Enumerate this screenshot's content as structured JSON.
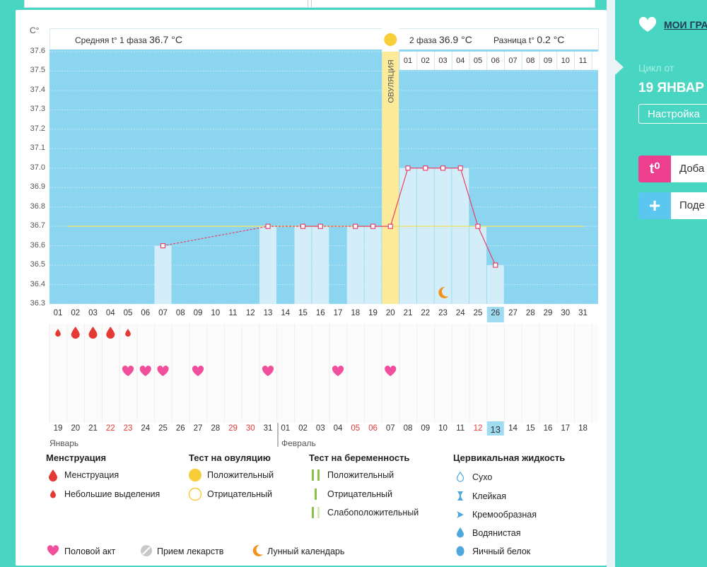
{
  "header": {
    "phase1_label": "Средняя t° 1 фаза",
    "phase1_value": "36.7 °C",
    "phase2_label": "2 фаза",
    "phase2_value": "36.9 °C",
    "diff_label": "Разница t°",
    "diff_value": "0.2 °C",
    "y_unit": "C°",
    "ovulation_label": "ОВУЛЯЦИЯ"
  },
  "chart_data": {
    "type": "line",
    "ylim": [
      36.3,
      37.6
    ],
    "yticks": [
      "36.3",
      "36.4",
      "36.5",
      "36.6",
      "36.7",
      "36.8",
      "36.9",
      "37.0",
      "37.1",
      "37.2",
      "37.3",
      "37.4",
      "37.5",
      "37.6"
    ],
    "cycle_days": [
      "01",
      "02",
      "03",
      "04",
      "05",
      "06",
      "07",
      "08",
      "09",
      "10",
      "11",
      "12",
      "13",
      "14",
      "15",
      "16",
      "17",
      "18",
      "19",
      "20",
      "21",
      "22",
      "23",
      "24",
      "25",
      "26",
      "27",
      "28",
      "29",
      "30",
      "31"
    ],
    "phase2_days": [
      "01",
      "02",
      "03",
      "04",
      "05",
      "06",
      "07",
      "08",
      "09",
      "10",
      "11"
    ],
    "current_day_index": 25,
    "temperatures": [
      {
        "day": 7,
        "value": 36.6
      },
      {
        "day": 13,
        "value": 36.7
      },
      {
        "day": 15,
        "value": 36.7
      },
      {
        "day": 16,
        "value": 36.7
      },
      {
        "day": 18,
        "value": 36.7
      },
      {
        "day": 19,
        "value": 36.7
      },
      {
        "day": 20,
        "value": 36.7
      },
      {
        "day": 21,
        "value": 37.0
      },
      {
        "day": 22,
        "value": 37.0
      },
      {
        "day": 23,
        "value": 37.0
      },
      {
        "day": 24,
        "value": 37.0
      },
      {
        "day": 25,
        "value": 36.7
      },
      {
        "day": 26,
        "value": 36.5
      }
    ],
    "coverline": 36.7,
    "ovulation_day": 20,
    "moon_day": 23,
    "menstruation": [
      {
        "day": 1,
        "type": "light"
      },
      {
        "day": 2,
        "type": "full"
      },
      {
        "day": 3,
        "type": "full"
      },
      {
        "day": 4,
        "type": "full"
      },
      {
        "day": 5,
        "type": "light"
      }
    ],
    "intercourse_days": [
      5,
      6,
      7,
      9,
      13,
      17,
      20
    ],
    "calendar_dates": [
      "19",
      "20",
      "21",
      "22",
      "23",
      "24",
      "25",
      "26",
      "27",
      "28",
      "29",
      "30",
      "31",
      "01",
      "02",
      "03",
      "04",
      "05",
      "06",
      "07",
      "08",
      "09",
      "10",
      "11",
      "12",
      "13",
      "14",
      "15",
      "16",
      "17",
      "18"
    ],
    "calendar_red_indices": [
      3,
      4,
      10,
      11,
      17,
      18,
      24
    ],
    "calendar_current_index": 25,
    "month1": "Январь",
    "month2": "Февраль"
  },
  "legend": {
    "menstruation_title": "Менструация",
    "menstruation_full": "Менструация",
    "menstruation_light": "Небольшие выделения",
    "ovtest_title": "Тест на овуляцию",
    "ovtest_pos": "Положительный",
    "ovtest_neg": "Отрицательный",
    "pregtest_title": "Тест на беременность",
    "pregtest_pos": "Положительный",
    "pregtest_neg": "Отрицательный",
    "pregtest_weak": "Слабоположительный",
    "fluid_title": "Цервикальная жидкость",
    "fluid_dry": "Сухо",
    "fluid_sticky": "Клейкая",
    "fluid_creamy": "Кремообразная",
    "fluid_watery": "Водянистая",
    "fluid_eggwhite": "Яичный белок",
    "sex": "Половой акт",
    "meds": "Прием лекарств",
    "lunar": "Лунный календарь"
  },
  "sidebar": {
    "my_charts": "МОИ ГРА",
    "cycle_from": "Цикл от",
    "cycle_date": "19 ЯНВАР",
    "settings": "Настройка",
    "add_temp_icon": "t⁰",
    "add_temp": "Доба",
    "share": "Поде"
  },
  "colors": {
    "plot_bg": "#8cd5f0",
    "bar": "#d3eef9",
    "line": "#e8406a",
    "coverline": "#e9e27a",
    "ovulation": "#fbeb9b",
    "ovulation_dot": "#f7cd38",
    "drop": "#e53935",
    "heart": "#ef4f9b",
    "moon": "#f0921b",
    "sidebar_bg": "#48d6c2"
  }
}
